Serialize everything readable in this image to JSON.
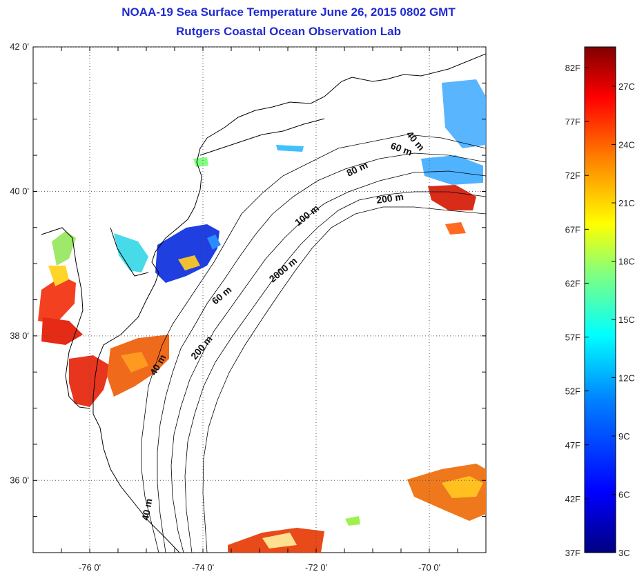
{
  "title": "NOAA-19 Sea Surface Temperature June 26, 2015 0802 GMT",
  "subtitle": "Rutgers Coastal Ocean Observation Lab",
  "map": {
    "lat_ticks": [
      "42 0'",
      "40 0'",
      "38 0'",
      "36 0'"
    ],
    "lon_ticks": [
      "-76 0'",
      "-74 0'",
      "-72 0'",
      "-70 0'"
    ],
    "lat_values": [
      42,
      40,
      38,
      36
    ],
    "lon_values": [
      -76,
      -74,
      -72,
      -70
    ],
    "lon_range": [
      -77,
      -69
    ],
    "lat_range": [
      35,
      42
    ],
    "grid": "dotted",
    "contour_labels": [
      "40 m",
      "60 m",
      "80 m",
      "200 m",
      "100 m",
      "2000 m",
      "60 m",
      "200 m",
      "40 m",
      "40 m"
    ]
  },
  "colorbar": {
    "fahrenheit_labels": [
      "82F",
      "77F",
      "72F",
      "67F",
      "62F",
      "57F",
      "52F",
      "47F",
      "42F",
      "37F"
    ],
    "celsius_labels": [
      "27C",
      "24C",
      "21C",
      "18C",
      "15C",
      "12C",
      "9C",
      "6C",
      "3C"
    ],
    "colors": [
      "#000080",
      "#0000ff",
      "#0080ff",
      "#00ffff",
      "#80ff80",
      "#ffff00",
      "#ff8000",
      "#ff0000",
      "#800000"
    ]
  }
}
